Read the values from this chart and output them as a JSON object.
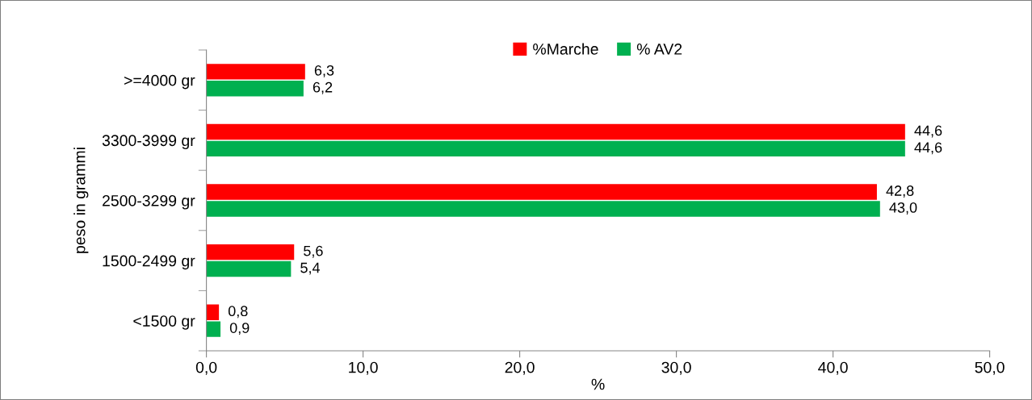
{
  "chart_data": {
    "type": "bar",
    "orientation": "horizontal",
    "ylabel": "peso in grammi",
    "xlabel": "%",
    "categories": [
      ">=4000 gr",
      "3300-3999 gr",
      "2500-3299 gr",
      "1500-2499 gr",
      "<1500 gr"
    ],
    "series": [
      {
        "name": "%Marche",
        "color": "#ff0000",
        "values": [
          6.3,
          44.6,
          42.8,
          5.6,
          0.8
        ],
        "value_labels": [
          "6,3",
          "44,6",
          "42,8",
          "5,6",
          "0,8"
        ]
      },
      {
        "name": "% AV2",
        "color": "#00b050",
        "values": [
          6.2,
          44.6,
          43.0,
          5.4,
          0.9
        ],
        "value_labels": [
          "6,2",
          "44,6",
          "43,0",
          "5,4",
          "0,9"
        ]
      }
    ],
    "xlim": [
      0,
      50
    ],
    "xticks": [
      {
        "value": 0,
        "label": "0,0"
      },
      {
        "value": 10,
        "label": "10,0"
      },
      {
        "value": 20,
        "label": "20,0"
      },
      {
        "value": 30,
        "label": "30,0"
      },
      {
        "value": 40,
        "label": "40,0"
      },
      {
        "value": 50,
        "label": "50,0"
      }
    ],
    "grid": false,
    "legend": "top"
  }
}
